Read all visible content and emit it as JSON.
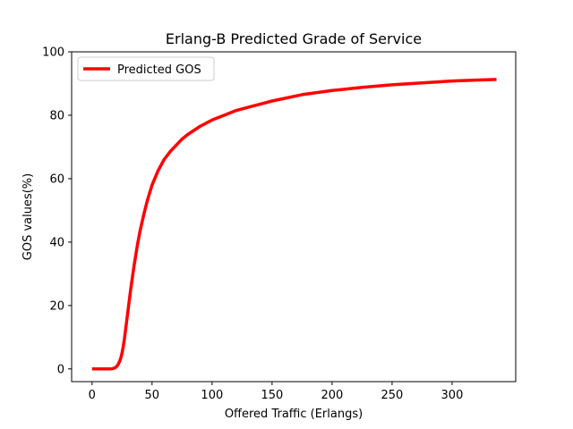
{
  "chart_data": {
    "type": "line",
    "title": "Erlang-B Predicted Grade of Service",
    "xlabel": "Offered Traffic (Erlangs)",
    "ylabel": "GOS values(%)",
    "xlim": [
      -17,
      353
    ],
    "ylim": [
      -4,
      100
    ],
    "xticks": [
      0,
      50,
      100,
      150,
      200,
      250,
      300
    ],
    "yticks": [
      0,
      20,
      40,
      60,
      80,
      100
    ],
    "grid": false,
    "legend": {
      "position": "upper-left"
    },
    "colors": {
      "series": "#ff0000",
      "axes": "#000000",
      "background": "#ffffff"
    },
    "series": [
      {
        "name": "Predicted GOS",
        "x": [
          0,
          5,
          10,
          15,
          17,
          19,
          20,
          21,
          22,
          23,
          24,
          25,
          26,
          27,
          28,
          30,
          32,
          35,
          38,
          40,
          43,
          46,
          50,
          55,
          60,
          65,
          70,
          75,
          80,
          90,
          100,
          110,
          120,
          130,
          140,
          150,
          175,
          200,
          225,
          250,
          275,
          300,
          320,
          337
        ],
        "y": [
          0,
          0,
          0,
          0,
          0.1,
          0.3,
          0.6,
          1,
          1.6,
          2.4,
          3.5,
          5,
          7,
          9.5,
          12.5,
          18.5,
          24.5,
          32.5,
          39.5,
          43.5,
          48.5,
          53,
          58,
          62.5,
          66,
          68.5,
          70.5,
          72.5,
          74,
          76.5,
          78.5,
          80,
          81.5,
          82.5,
          83.5,
          84.5,
          86.5,
          87.8,
          88.8,
          89.6,
          90.2,
          90.8,
          91.1,
          91.3
        ]
      }
    ]
  }
}
